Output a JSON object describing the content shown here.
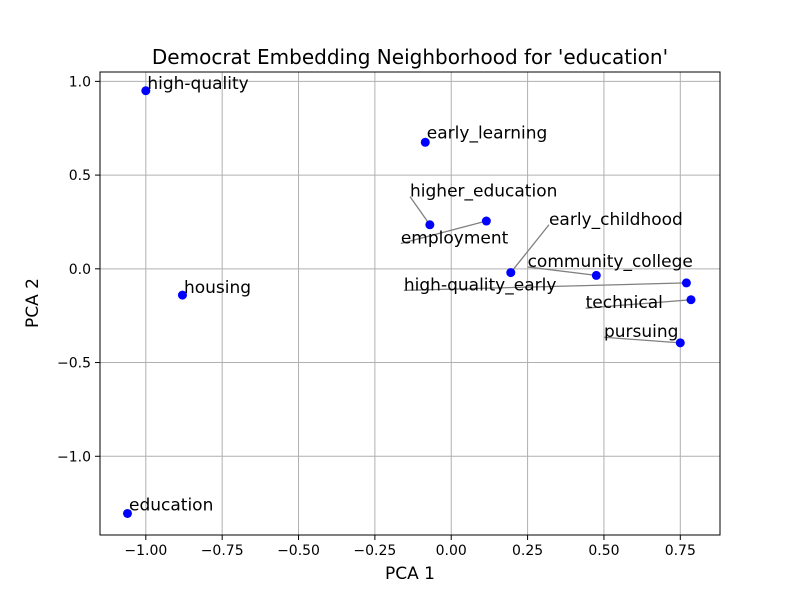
{
  "chart_data": {
    "type": "scatter",
    "title": "Democrat Embedding Neighborhood for 'education'",
    "xlabel": "PCA 1",
    "ylabel": "PCA 2",
    "xlim": [
      -1.15,
      0.88
    ],
    "ylim": [
      -1.42,
      1.05
    ],
    "grid": true,
    "point_color": "#0000ff",
    "leader_color": "#808080",
    "xticks": [
      {
        "value": -1.0,
        "label": "−1.00"
      },
      {
        "value": -0.75,
        "label": "−0.75"
      },
      {
        "value": -0.5,
        "label": "−0.50"
      },
      {
        "value": -0.25,
        "label": "−0.25"
      },
      {
        "value": 0.0,
        "label": "0.00"
      },
      {
        "value": 0.25,
        "label": "0.25"
      },
      {
        "value": 0.5,
        "label": "0.50"
      },
      {
        "value": 0.75,
        "label": "0.75"
      }
    ],
    "yticks": [
      {
        "value": 1.0,
        "label": "1.0"
      },
      {
        "value": 0.5,
        "label": "0.5"
      },
      {
        "value": 0.0,
        "label": "0.0"
      },
      {
        "value": -0.5,
        "label": "−0.5"
      },
      {
        "value": -1.0,
        "label": "−1.0"
      }
    ],
    "points": [
      {
        "label": "high-quality",
        "x": -1.0,
        "y": 0.95,
        "lx": -0.995,
        "ly": 0.96
      },
      {
        "label": "early_learning",
        "x": -0.085,
        "y": 0.675,
        "lx": -0.08,
        "ly": 0.695
      },
      {
        "label": "higher_education",
        "x": -0.07,
        "y": 0.235,
        "lx": -0.135,
        "ly": 0.385
      },
      {
        "label": "employment",
        "x": 0.115,
        "y": 0.255,
        "lx": -0.165,
        "ly": 0.135
      },
      {
        "label": "early_childhood",
        "x": 0.195,
        "y": -0.02,
        "lx": 0.32,
        "ly": 0.235
      },
      {
        "label": "community_college",
        "x": 0.475,
        "y": -0.035,
        "lx": 0.25,
        "ly": 0.01
      },
      {
        "label": "high-quality_early",
        "x": 0.77,
        "y": -0.075,
        "lx": -0.155,
        "ly": -0.115
      },
      {
        "label": "technical",
        "x": 0.785,
        "y": -0.165,
        "lx": 0.44,
        "ly": -0.21
      },
      {
        "label": "pursuing",
        "x": 0.75,
        "y": -0.395,
        "lx": 0.5,
        "ly": -0.365
      },
      {
        "label": "housing",
        "x": -0.88,
        "y": -0.14,
        "lx": -0.875,
        "ly": -0.13
      },
      {
        "label": "education",
        "x": -1.06,
        "y": -1.305,
        "lx": -1.055,
        "ly": -1.29
      }
    ]
  }
}
